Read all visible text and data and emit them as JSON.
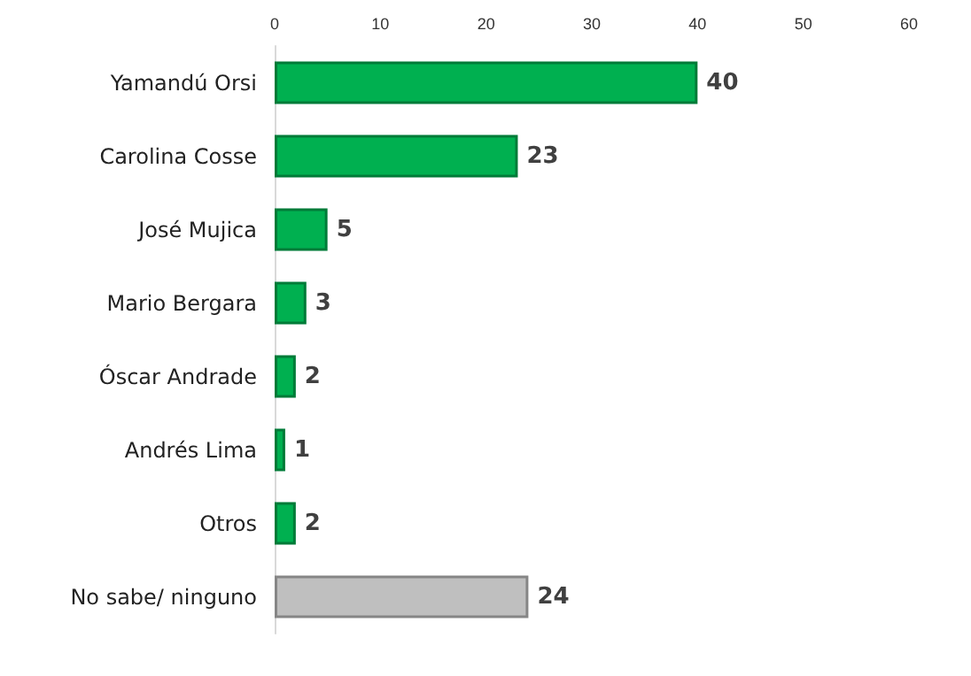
{
  "chart_data": {
    "type": "bar",
    "orientation": "horizontal",
    "categories": [
      "Yamandú Orsi",
      "Carolina Cosse",
      "José Mujica",
      "Mario Bergara",
      "Óscar Andrade",
      "Andrés Lima",
      "Otros",
      "No sabe/ ninguno"
    ],
    "values": [
      40,
      23,
      5,
      3,
      2,
      1,
      2,
      24
    ],
    "colors": [
      "#00b050",
      "#00b050",
      "#00b050",
      "#00b050",
      "#00b050",
      "#00b050",
      "#00b050",
      "#bfbfbf"
    ],
    "xlim": [
      0,
      60
    ],
    "xticks": [
      0,
      10,
      20,
      30,
      40,
      50,
      60
    ],
    "data_labels": true,
    "grid": false
  }
}
